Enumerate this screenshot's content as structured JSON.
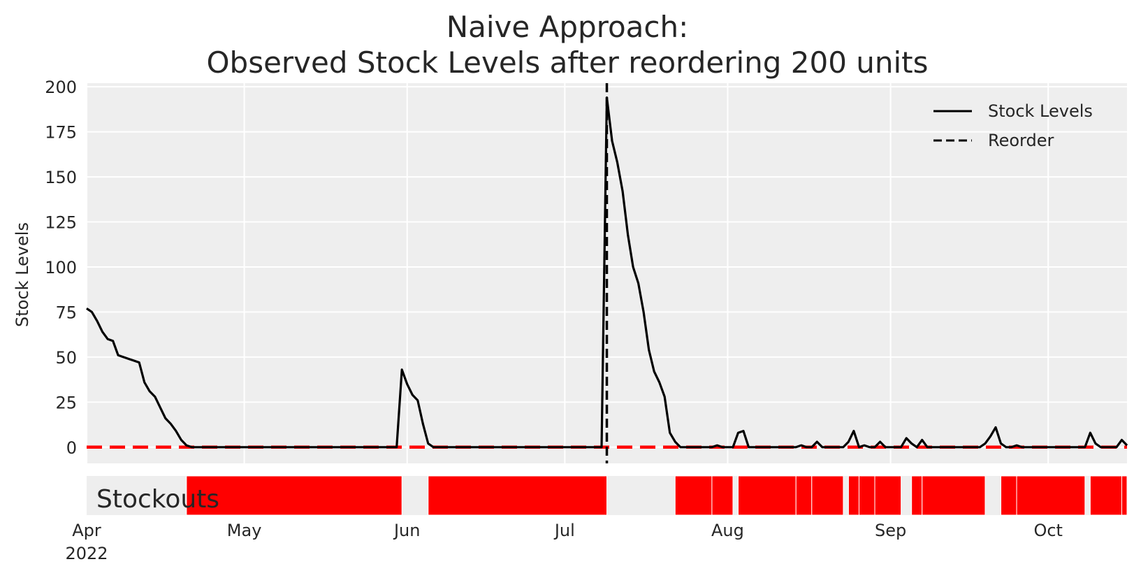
{
  "chart_data": [
    {
      "type": "line",
      "title": "Naive Approach:",
      "subtitle": "Observed Stock Levels after reordering 200 units",
      "xlabel": "",
      "ylabel": "Stock Levels",
      "xlim": [
        "2022-04-01",
        "2022-10-16"
      ],
      "ylim": [
        -9,
        202
      ],
      "yticks": [
        0,
        25,
        50,
        75,
        100,
        125,
        150,
        175,
        200
      ],
      "xtick_dates": [
        "2022-04-01",
        "2022-05-01",
        "2022-06-01",
        "2022-07-01",
        "2022-08-01",
        "2022-09-01",
        "2022-10-01"
      ],
      "xtick_labels": [
        "Apr",
        "May",
        "Jun",
        "Jul",
        "Aug",
        "Sep",
        "Oct"
      ],
      "year_label": "2022",
      "grid": true,
      "legend": {
        "placement": "top-right",
        "entries": [
          "Stock Levels",
          "Reorder"
        ]
      },
      "series": [
        {
          "name": "Stock Levels",
          "style": "solid",
          "color": "#000000",
          "points": [
            [
              "2022-04-01",
              77
            ],
            [
              "2022-04-02",
              75
            ],
            [
              "2022-04-03",
              70
            ],
            [
              "2022-04-04",
              64
            ],
            [
              "2022-04-05",
              60
            ],
            [
              "2022-04-06",
              59
            ],
            [
              "2022-04-07",
              51
            ],
            [
              "2022-04-08",
              50
            ],
            [
              "2022-04-09",
              49
            ],
            [
              "2022-04-10",
              48
            ],
            [
              "2022-04-11",
              47
            ],
            [
              "2022-04-12",
              36
            ],
            [
              "2022-04-13",
              31
            ],
            [
              "2022-04-14",
              28
            ],
            [
              "2022-04-15",
              22
            ],
            [
              "2022-04-16",
              16
            ],
            [
              "2022-04-17",
              13
            ],
            [
              "2022-04-18",
              9
            ],
            [
              "2022-04-19",
              4
            ],
            [
              "2022-04-20",
              1
            ],
            [
              "2022-04-21",
              0
            ],
            [
              "2022-05-30",
              0
            ],
            [
              "2022-05-31",
              43
            ],
            [
              "2022-06-01",
              35
            ],
            [
              "2022-06-02",
              29
            ],
            [
              "2022-06-03",
              26
            ],
            [
              "2022-06-04",
              13
            ],
            [
              "2022-06-05",
              2
            ],
            [
              "2022-06-06",
              0
            ],
            [
              "2022-07-08",
              0
            ],
            [
              "2022-07-09",
              194
            ],
            [
              "2022-07-10",
              170
            ],
            [
              "2022-07-11",
              158
            ],
            [
              "2022-07-12",
              142
            ],
            [
              "2022-07-13",
              118
            ],
            [
              "2022-07-14",
              100
            ],
            [
              "2022-07-15",
              91
            ],
            [
              "2022-07-16",
              75
            ],
            [
              "2022-07-17",
              54
            ],
            [
              "2022-07-18",
              42
            ],
            [
              "2022-07-19",
              36
            ],
            [
              "2022-07-20",
              28
            ],
            [
              "2022-07-21",
              8
            ],
            [
              "2022-07-22",
              3
            ],
            [
              "2022-07-23",
              0
            ],
            [
              "2022-07-29",
              0
            ],
            [
              "2022-07-30",
              1
            ],
            [
              "2022-07-31",
              0
            ],
            [
              "2022-08-02",
              0
            ],
            [
              "2022-08-03",
              8
            ],
            [
              "2022-08-04",
              9
            ],
            [
              "2022-08-05",
              0
            ],
            [
              "2022-08-14",
              0
            ],
            [
              "2022-08-15",
              1
            ],
            [
              "2022-08-16",
              0
            ],
            [
              "2022-08-17",
              0
            ],
            [
              "2022-08-18",
              3
            ],
            [
              "2022-08-19",
              0
            ],
            [
              "2022-08-23",
              0
            ],
            [
              "2022-08-24",
              3
            ],
            [
              "2022-08-25",
              9
            ],
            [
              "2022-08-26",
              0
            ],
            [
              "2022-08-27",
              1
            ],
            [
              "2022-08-28",
              0
            ],
            [
              "2022-08-29",
              0
            ],
            [
              "2022-08-30",
              3
            ],
            [
              "2022-08-31",
              0
            ],
            [
              "2022-09-03",
              0
            ],
            [
              "2022-09-04",
              5
            ],
            [
              "2022-09-05",
              2
            ],
            [
              "2022-09-06",
              0
            ],
            [
              "2022-09-07",
              4
            ],
            [
              "2022-09-08",
              0
            ],
            [
              "2022-09-18",
              0
            ],
            [
              "2022-09-19",
              2
            ],
            [
              "2022-09-20",
              6
            ],
            [
              "2022-09-21",
              11
            ],
            [
              "2022-09-22",
              2
            ],
            [
              "2022-09-23",
              0
            ],
            [
              "2022-09-24",
              0
            ],
            [
              "2022-09-25",
              1
            ],
            [
              "2022-09-26",
              0
            ],
            [
              "2022-10-08",
              0
            ],
            [
              "2022-10-09",
              8
            ],
            [
              "2022-10-10",
              2
            ],
            [
              "2022-10-11",
              0
            ],
            [
              "2022-10-14",
              0
            ],
            [
              "2022-10-15",
              4
            ],
            [
              "2022-10-16",
              1
            ]
          ]
        },
        {
          "name": "Reorder",
          "style": "dashed",
          "color": "#000000",
          "x": "2022-07-09"
        }
      ],
      "reference_line": {
        "y": 0,
        "color": "#ff0000",
        "style": "dashed"
      }
    },
    {
      "type": "bar",
      "label": "Stockouts",
      "color": "#ff0000",
      "xlim": [
        "2022-04-01",
        "2022-10-16"
      ],
      "stockout_periods": [
        [
          "2022-04-20",
          "2022-05-31"
        ],
        [
          "2022-06-05",
          "2022-07-09"
        ],
        [
          "2022-07-22",
          "2022-07-29"
        ],
        [
          "2022-07-29",
          "2022-08-02"
        ],
        [
          "2022-08-03",
          "2022-08-14"
        ],
        [
          "2022-08-14",
          "2022-08-17"
        ],
        [
          "2022-08-17",
          "2022-08-23"
        ],
        [
          "2022-08-24",
          "2022-08-26"
        ],
        [
          "2022-08-26",
          "2022-08-29"
        ],
        [
          "2022-08-29",
          "2022-09-03"
        ],
        [
          "2022-09-05",
          "2022-09-07"
        ],
        [
          "2022-09-07",
          "2022-09-19"
        ],
        [
          "2022-09-22",
          "2022-09-25"
        ],
        [
          "2022-09-25",
          "2022-10-08"
        ],
        [
          "2022-10-09",
          "2022-10-15"
        ],
        [
          "2022-10-15",
          "2022-10-16"
        ]
      ]
    }
  ]
}
